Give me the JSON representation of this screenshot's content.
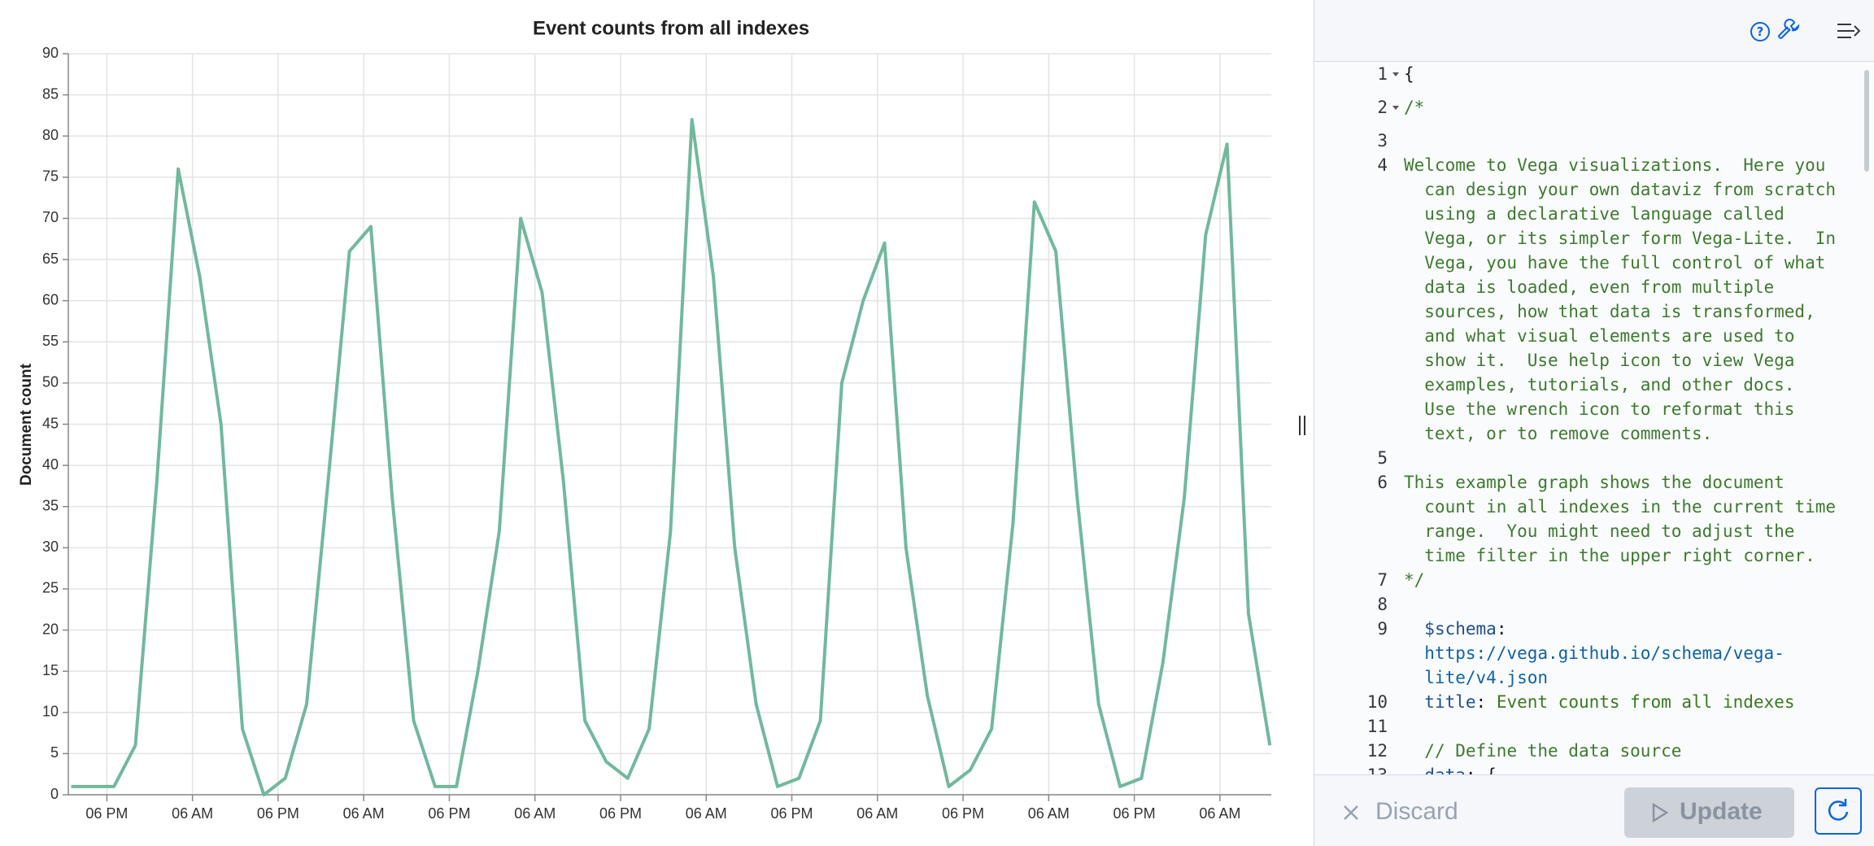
{
  "chart_data": {
    "type": "line",
    "title": "Event counts from all indexes",
    "y_label": "Document count",
    "x": [
      13,
      16,
      19,
      22,
      25,
      28,
      31,
      34,
      37,
      40,
      43,
      46,
      49,
      52,
      55,
      58,
      61,
      64,
      67,
      70,
      73,
      76,
      79,
      82,
      85,
      88,
      91,
      94,
      97,
      100,
      103,
      106,
      109,
      112,
      115,
      118,
      121,
      124,
      127,
      130,
      133,
      136,
      139,
      142,
      145,
      148,
      151,
      154,
      157,
      160,
      163,
      166,
      169,
      172,
      175,
      178,
      181
    ],
    "values": [
      1,
      1,
      1,
      6,
      38,
      76,
      63,
      45,
      8,
      0,
      2,
      11,
      38,
      66,
      69,
      36,
      9,
      1,
      1,
      15,
      32,
      70,
      61,
      38,
      9,
      4,
      2,
      8,
      32,
      82,
      63,
      30,
      11,
      1,
      2,
      9,
      50,
      60,
      67,
      30,
      12,
      1,
      3,
      8,
      33,
      72,
      66,
      36,
      11,
      1,
      2,
      16,
      36,
      68,
      79,
      22,
      6
    ],
    "color": "#72b89c",
    "xlim": [
      12.6,
      181.2
    ],
    "xticks": [
      {
        "value": 18,
        "label": "06 PM"
      },
      {
        "value": 30,
        "label": "06 AM"
      },
      {
        "value": 42,
        "label": "06 PM"
      },
      {
        "value": 54,
        "label": "06 AM"
      },
      {
        "value": 66,
        "label": "06 PM"
      },
      {
        "value": 78,
        "label": "06 AM"
      },
      {
        "value": 90,
        "label": "06 PM"
      },
      {
        "value": 102,
        "label": "06 AM"
      },
      {
        "value": 114,
        "label": "06 PM"
      },
      {
        "value": 126,
        "label": "06 AM"
      },
      {
        "value": 138,
        "label": "06 PM"
      },
      {
        "value": 150,
        "label": "06 AM"
      },
      {
        "value": 162,
        "label": "06 PM"
      },
      {
        "value": 174,
        "label": "06 AM"
      }
    ],
    "ylim": [
      0,
      90
    ],
    "yticks": [
      0,
      5,
      10,
      15,
      20,
      25,
      30,
      35,
      40,
      45,
      50,
      55,
      60,
      65,
      70,
      75,
      80,
      85,
      90
    ],
    "grid": true
  },
  "editor": {
    "lines": [
      {
        "num": 1,
        "segments": [
          {
            "text": "{"
          }
        ]
      },
      {
        "num": 2,
        "segments": [
          {
            "text": "/*",
            "style": "comment"
          }
        ]
      },
      {
        "num": 3,
        "segments": []
      },
      {
        "num": 4,
        "segments": [
          {
            "text": "Welcome to Vega visualizations.  Here you can design your own dataviz from scratch using a declarative language called Vega, or its simpler form Vega-Lite.  In Vega, you have the full control of what data is loaded, even from multiple sources, how that data is transformed, and what visual elements are used to show it.  Use help icon to view Vega examples, tutorials, and other docs.  Use the wrench icon to reformat this text, or to remove comments.",
            "style": "comment"
          }
        ]
      },
      {
        "num": 5,
        "segments": []
      },
      {
        "num": 6,
        "segments": [
          {
            "text": "This example graph shows the document count in all indexes in the current time range.  You might need to adjust the time filter in the upper right corner.",
            "style": "comment"
          }
        ]
      },
      {
        "num": 7,
        "segments": [
          {
            "text": "*/",
            "style": "comment"
          }
        ]
      },
      {
        "num": 8,
        "segments": []
      },
      {
        "num": 9,
        "segments": [
          {
            "text": "  $schema",
            "style": "key"
          },
          {
            "text": ": "
          },
          {
            "text": "https://vega.github.io/schema/vega-lite/v4.json",
            "style": "url"
          }
        ]
      },
      {
        "num": 10,
        "segments": [
          {
            "text": "  title",
            "style": "key"
          },
          {
            "text": ": "
          },
          {
            "text": "Event counts from all indexes",
            "style": "string"
          }
        ]
      },
      {
        "num": 11,
        "segments": []
      },
      {
        "num": 12,
        "segments": [
          {
            "text": "  // Define the data source",
            "style": "comment"
          }
        ]
      },
      {
        "num": 13,
        "segments": [
          {
            "text": "  data",
            "style": "key"
          },
          {
            "text": ": {"
          }
        ]
      }
    ],
    "discard": "Discard",
    "update": "Update"
  }
}
